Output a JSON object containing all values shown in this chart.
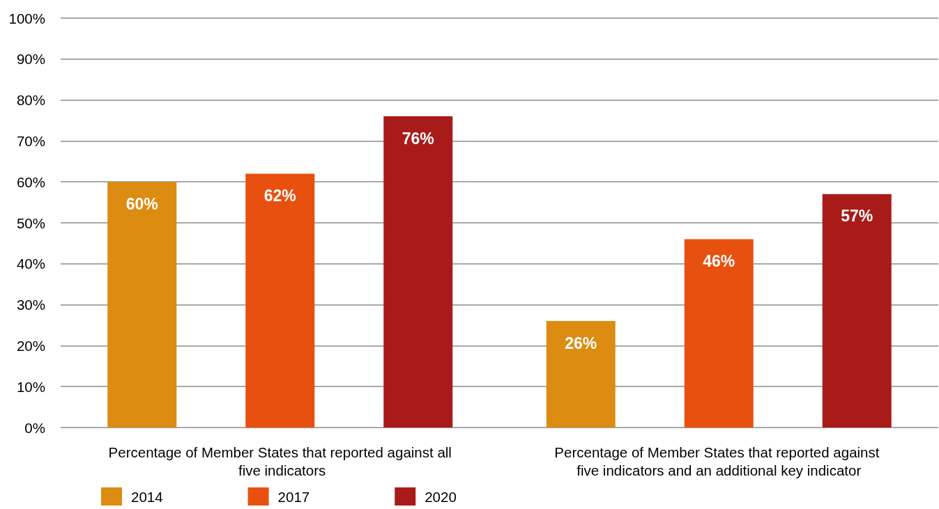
{
  "chart_data": {
    "type": "bar",
    "categories": [
      "Percentage of Member States that reported against all five indicators",
      "Percentage of Member States that reported against five indicators and an additional key indicator"
    ],
    "series": [
      {
        "name": "2014",
        "color": "#dc8c10",
        "values": [
          60,
          26
        ],
        "value_labels": [
          "60%",
          "26%"
        ]
      },
      {
        "name": "2017",
        "color": "#e85010",
        "values": [
          62,
          46
        ],
        "value_labels": [
          "62%",
          "46%"
        ]
      },
      {
        "name": "2020",
        "color": "#a91b18",
        "values": [
          76,
          57
        ],
        "value_labels": [
          "76%",
          "57%"
        ]
      }
    ],
    "ylim": [
      0,
      100
    ],
    "yticks": [
      {
        "value": 0,
        "label": "0%"
      },
      {
        "value": 10,
        "label": "10%"
      },
      {
        "value": 20,
        "label": "20%"
      },
      {
        "value": 30,
        "label": "30%"
      },
      {
        "value": 40,
        "label": "40%"
      },
      {
        "value": 50,
        "label": "50%"
      },
      {
        "value": 60,
        "label": "60%"
      },
      {
        "value": 70,
        "label": "70%"
      },
      {
        "value": 80,
        "label": "80%"
      },
      {
        "value": 90,
        "label": "90%"
      },
      {
        "value": 100,
        "label": "100%"
      }
    ],
    "grid": "y",
    "legend": "bottom"
  }
}
